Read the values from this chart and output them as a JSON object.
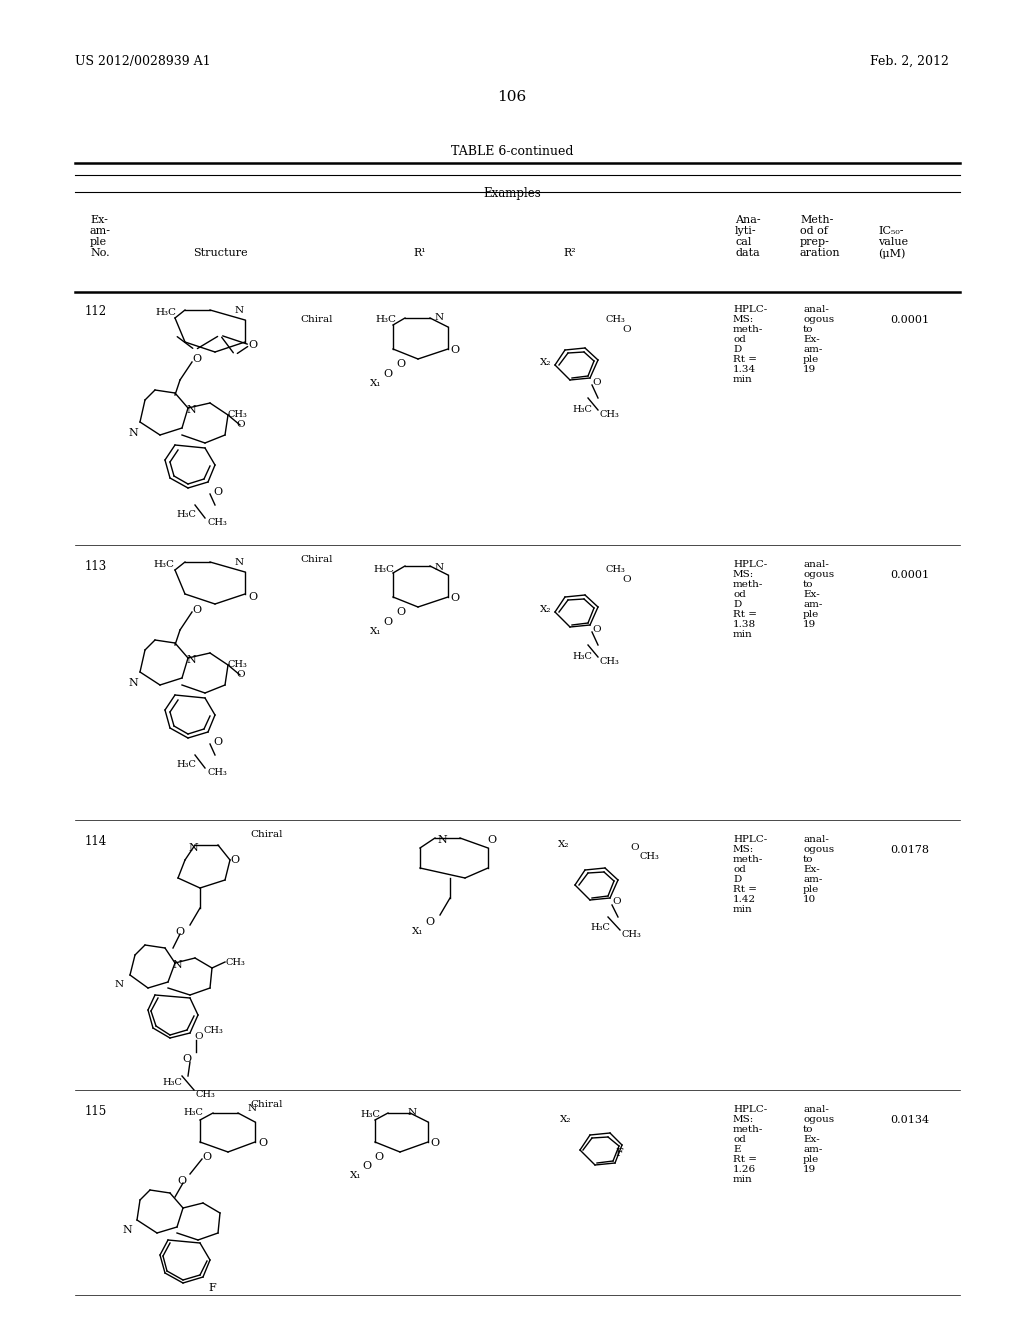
{
  "page_number": "106",
  "patent_number": "US 2012/0028939 A1",
  "patent_date": "Feb. 2, 2012",
  "table_title": "TABLE 6-continued",
  "col_headers": {
    "examples": "Examples",
    "col1": "Ex-\nam-\nple\nNo.",
    "col2": "Structure",
    "col3": "R¹",
    "col4": "R²",
    "col5": "Ana-\nlyti-\ncal\ndata",
    "col6": "Meth-\nod of\nprep-\naration",
    "col7": "IC₅₀-\nvalue\n(μM)"
  },
  "rows": [
    {
      "no": "112",
      "analytical": "HPLC-\nMS:\nmeth-\nod\nD\nRt =\n1.34\nmin",
      "method": "anal-\nogous\nto\nEx-\nam-\nple\n19",
      "ic50": "0.0001"
    },
    {
      "no": "113",
      "analytical": "HPLC-\nMS:\nmeth-\nod\nD\nRt =\n1.38\nmin",
      "method": "anal-\nogous\nto\nEx-\nam-\nple\n19",
      "ic50": "0.0001"
    },
    {
      "no": "114",
      "analytical": "HPLC-\nMS:\nmeth-\nod\nD\nRt =\n1.42\nmin",
      "method": "anal-\nogous\nto\nEx-\nam-\nple\n10",
      "ic50": "0.0178"
    },
    {
      "no": "115",
      "analytical": "HPLC-\nMS:\nmeth-\nod\nE\nRt =\n1.26\nmin",
      "method": "anal-\nogous\nto\nEx-\nam-\nple\n19",
      "ic50": "0.0134"
    }
  ],
  "background_color": "#ffffff",
  "text_color": "#000000",
  "font_size": 9,
  "small_font_size": 7.5
}
